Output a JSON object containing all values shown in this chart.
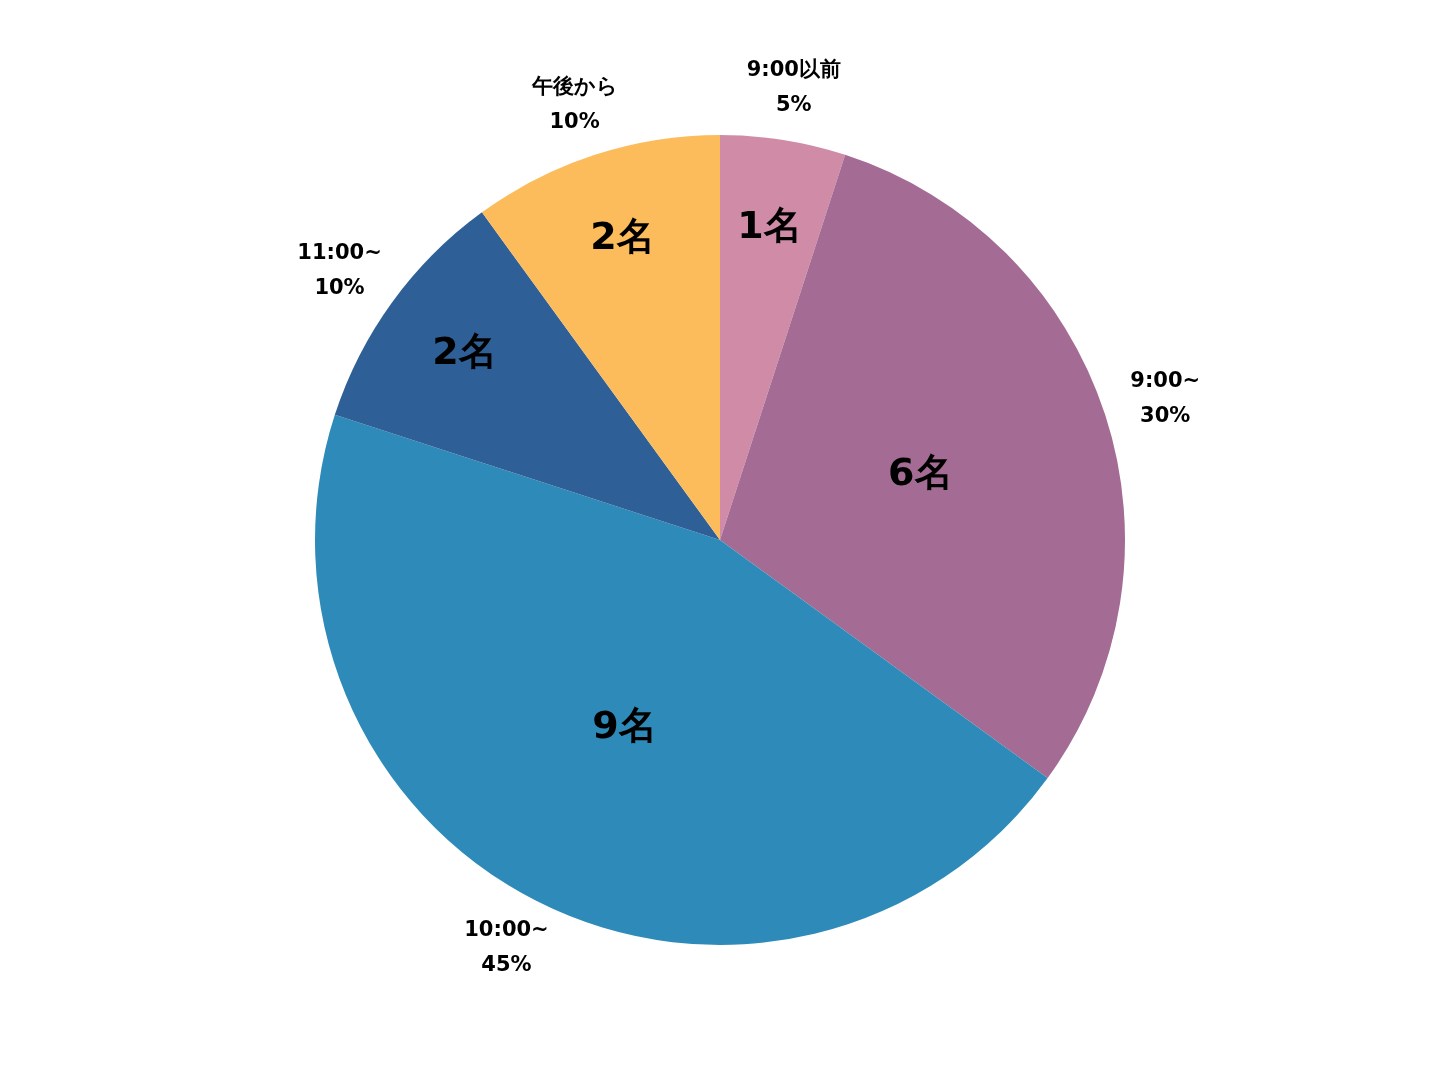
{
  "chart_data": {
    "type": "pie",
    "categories": [
      "9:00以前",
      "9:00~",
      "10:00~",
      "11:00~",
      "午後から"
    ],
    "values": [
      1,
      6,
      9,
      2,
      2
    ],
    "colors": [
      "#d08ca7",
      "#a46c94",
      "#2e8bb9",
      "#2e5f96",
      "#fdbc5c"
    ],
    "value_labels": [
      "1名",
      "6名",
      "9名",
      "2名",
      "2名"
    ],
    "annotations": [
      {
        "text": "5%",
        "x": "9:00以前"
      },
      {
        "text": "30%",
        "x": "9:00~"
      },
      {
        "text": "45%",
        "x": "10:00~"
      },
      {
        "text": "10%",
        "x": "11:00~"
      },
      {
        "text": "10%",
        "x": "午後から"
      }
    ],
    "legend": false
  }
}
